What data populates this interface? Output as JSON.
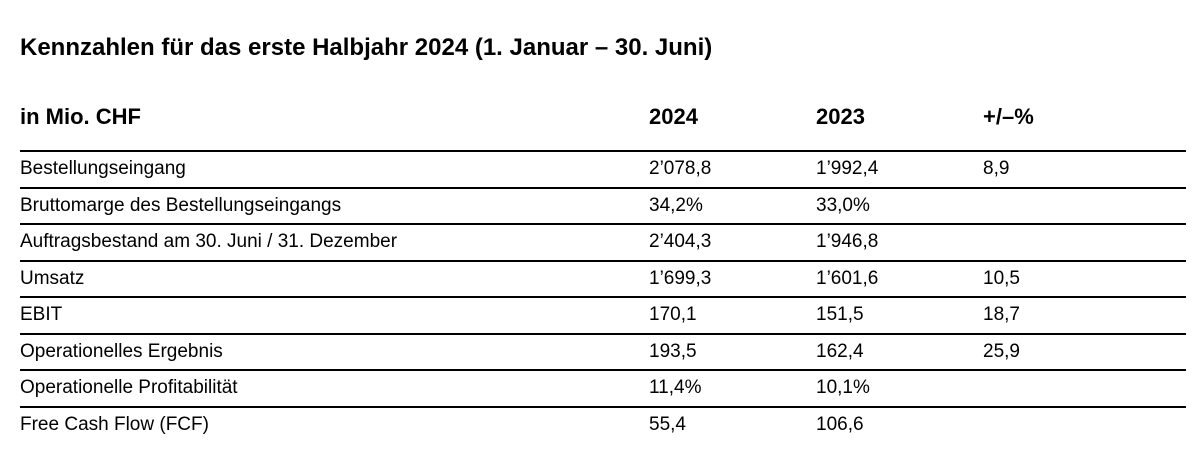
{
  "title": "Kennzahlen für das erste Halbjahr 2024 (1. Januar – 30. Juni)",
  "header": {
    "label": "in Mio. CHF",
    "col_2024": "2024",
    "col_2023": "2023",
    "col_change": "+/–%"
  },
  "rows": [
    {
      "label": "Bestellungseingang",
      "v2024": "2’078,8",
      "v2023": "1’992,4",
      "change": "8,9"
    },
    {
      "label": "Bruttomarge des Bestellungseingangs",
      "v2024": "34,2%",
      "v2023": "33,0%",
      "change": ""
    },
    {
      "label": "Auftragsbestand am 30. Juni / 31. Dezember",
      "v2024": "2’404,3",
      "v2023": "1’946,8",
      "change": ""
    },
    {
      "label": "Umsatz",
      "v2024": "1’699,3",
      "v2023": "1’601,6",
      "change": "10,5"
    },
    {
      "label": "EBIT",
      "v2024": "170,1",
      "v2023": "151,5",
      "change": "18,7"
    },
    {
      "label": "Operationelles Ergebnis",
      "v2024": "193,5",
      "v2023": "162,4",
      "change": "25,9"
    },
    {
      "label": "Operationelle Profitabilität",
      "v2024": "11,4%",
      "v2023": "10,1%",
      "change": ""
    },
    {
      "label": "Free Cash Flow (FCF)",
      "v2024": "55,4",
      "v2023": "106,6",
      "change": ""
    }
  ]
}
